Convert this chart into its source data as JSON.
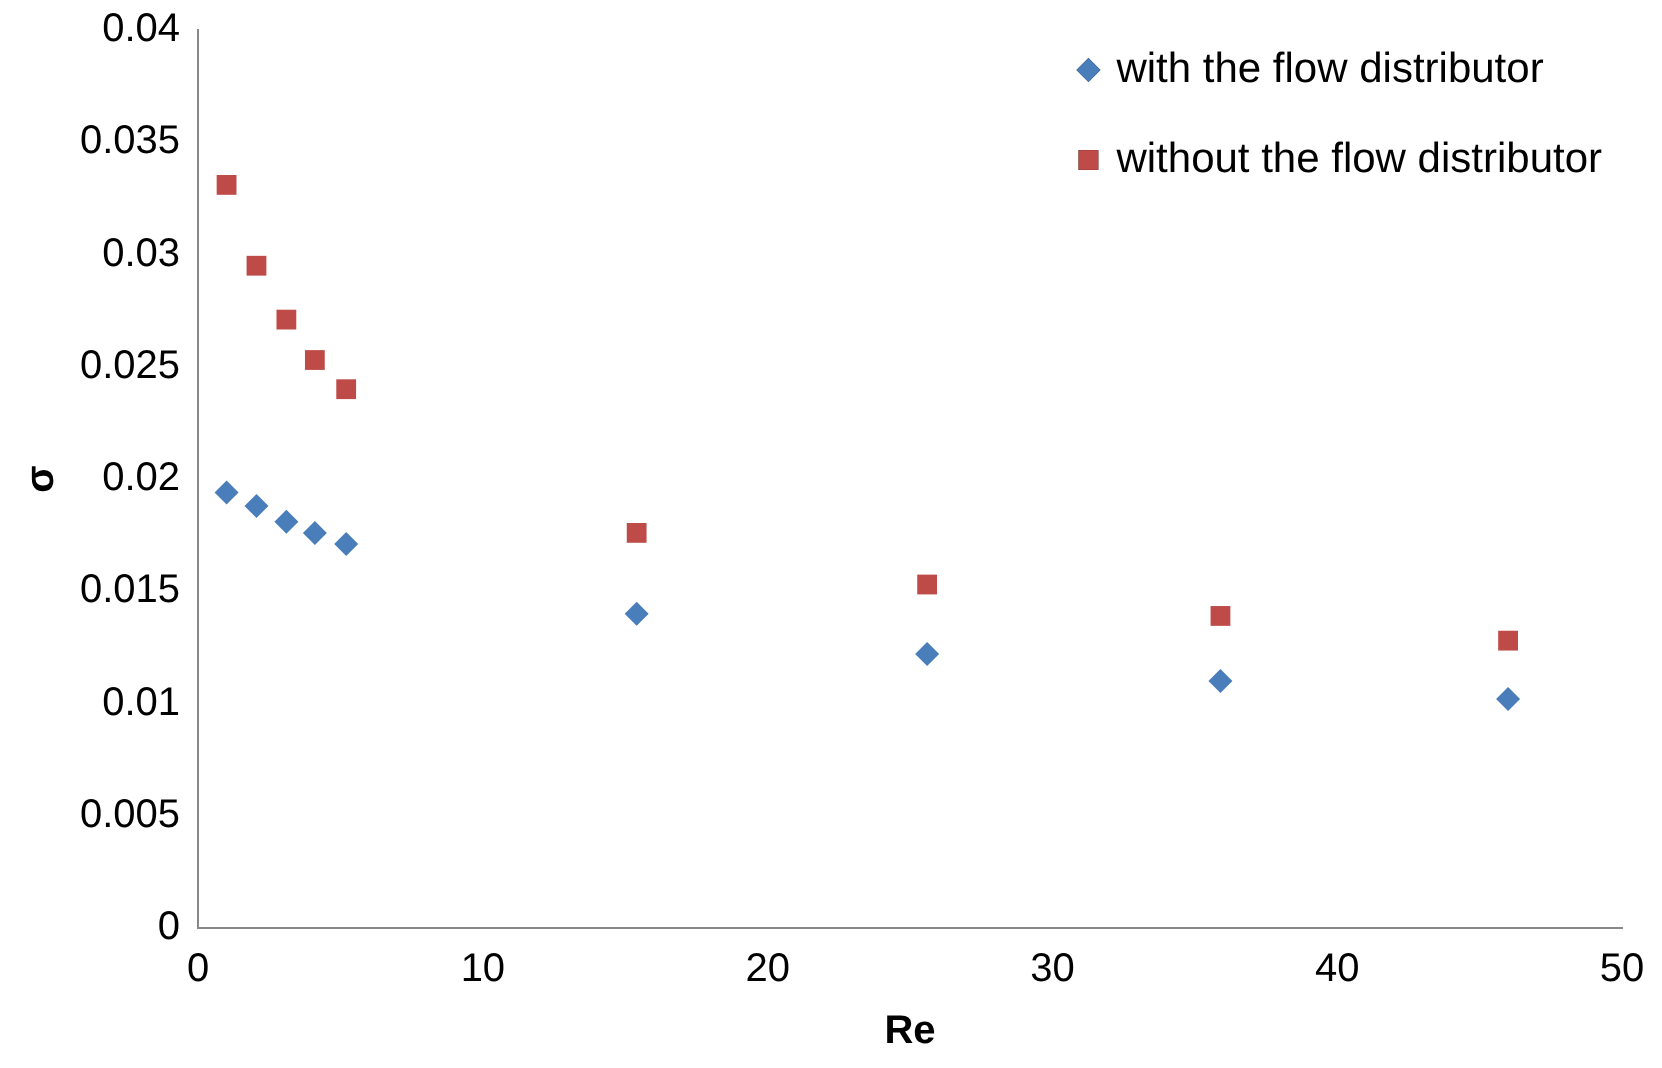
{
  "chart_data": {
    "type": "scatter",
    "xlabel": "Re",
    "ylabel": "σ",
    "x": [
      1.0,
      2.05,
      3.1,
      4.1,
      5.2,
      15.4,
      25.6,
      35.9,
      46.0
    ],
    "series": [
      {
        "name": "with the flow distributor",
        "color": "#4a7ebb",
        "marker": "diamond",
        "values": [
          0.0194,
          0.0188,
          0.0181,
          0.0176,
          0.0171,
          0.014,
          0.0122,
          0.011,
          0.0102
        ]
      },
      {
        "name": "without the flow distributor",
        "color": "#be4b48",
        "marker": "square",
        "values": [
          0.0331,
          0.0295,
          0.0271,
          0.0253,
          0.024,
          0.0176,
          0.0153,
          0.0139,
          0.0128
        ]
      }
    ],
    "xlim": [
      0,
      50
    ],
    "xticks": [
      0,
      10,
      20,
      30,
      40,
      50
    ],
    "ylim": [
      0,
      0.04
    ],
    "yticks": [
      0,
      0.005,
      0.01,
      0.015,
      0.02,
      0.025,
      0.03,
      0.035,
      0.04
    ],
    "grid": false,
    "legend": "top right"
  }
}
